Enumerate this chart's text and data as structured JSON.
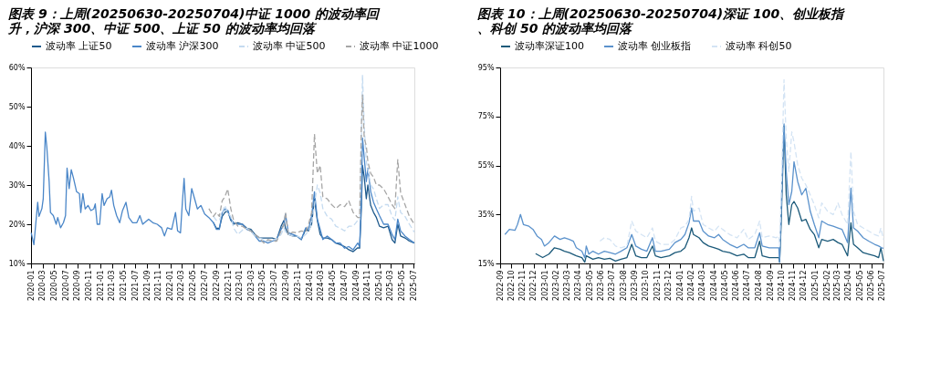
{
  "chart_data": [
    {
      "type": "line",
      "title": "图表 9：上周(20250630-20250704)中证 1000 的波动率回升，沪深 300、中证 500、上证 50 的波动率均回落",
      "legend": "top",
      "xlim": [
        "2020-01-01",
        "2025-07-04"
      ],
      "xticks": [
        "2020-01",
        "2020-03",
        "2020-05",
        "2020-07",
        "2020-09",
        "2020-11",
        "2021-01",
        "2021-03",
        "2021-05",
        "2021-07",
        "2021-09",
        "2021-11",
        "2022-01",
        "2022-03",
        "2022-05",
        "2022-07",
        "2022-09",
        "2022-11",
        "2023-01",
        "2023-03",
        "2023-05",
        "2023-07",
        "2023-09",
        "2023-11",
        "2024-01",
        "2024-03",
        "2024-05",
        "2024-07",
        "2024-09",
        "2024-11",
        "2025-01",
        "2025-03",
        "2025-05",
        "2025-07"
      ],
      "ylim": [
        10,
        60
      ],
      "yticks": [
        {
          "value": 10,
          "label": "10%"
        },
        {
          "value": 20,
          "label": "20%"
        },
        {
          "value": 30,
          "label": "30%"
        },
        {
          "value": 40,
          "label": "40%"
        },
        {
          "value": 50,
          "label": "50%"
        },
        {
          "value": 60,
          "label": "60%"
        }
      ],
      "series": [
        {
          "name": "波动率 上证50",
          "color": "#1f5a8c",
          "line_style": "solid",
          "x": [
            "2022-08-15",
            "2022-08-30",
            "2022-09-15",
            "2022-09-30",
            "2022-10-14",
            "2022-10-29",
            "2022-11-14",
            "2022-11-29",
            "2022-12-21",
            "2023-01-14",
            "2023-02-06",
            "2023-02-28",
            "2023-03-21",
            "2023-04-13",
            "2023-05-06",
            "2023-05-28",
            "2023-06-20",
            "2023-07-13",
            "2023-08-05",
            "2023-08-20",
            "2023-08-28",
            "2023-09-12",
            "2023-10-05",
            "2023-10-27",
            "2023-11-19",
            "2023-12-12",
            "2023-12-27",
            "2024-01-12",
            "2024-01-27",
            "2024-02-11",
            "2024-02-26",
            "2024-03-11",
            "2024-04-03",
            "2024-04-26",
            "2024-05-18",
            "2024-06-10",
            "2024-07-03",
            "2024-07-25",
            "2024-08-17",
            "2024-09-10",
            "2024-09-20",
            "2024-09-29",
            "2024-10-05",
            "2024-10-14",
            "2024-10-25",
            "2024-11-02",
            "2024-11-17",
            "2024-12-02",
            "2024-12-17",
            "2025-01-02",
            "2025-01-24",
            "2025-02-16",
            "2025-03-09",
            "2025-03-24",
            "2025-04-08",
            "2025-04-23",
            "2025-05-16",
            "2025-06-08",
            "2025-07-04"
          ],
          "values": [
            20.4,
            19,
            19,
            22,
            23,
            23.5,
            21,
            20,
            20.4,
            20,
            19,
            18.7,
            17.4,
            16.5,
            16.5,
            16.5,
            16.5,
            16.1,
            19.5,
            21,
            19,
            17.4,
            17,
            17,
            16.1,
            18.7,
            18.3,
            20,
            26.5,
            21,
            17.4,
            16.5,
            16.5,
            16.1,
            15.2,
            14.8,
            14.3,
            13.5,
            13,
            14,
            13.9,
            24,
            35,
            32,
            26.5,
            30,
            24.8,
            23,
            21.7,
            19.5,
            19.1,
            19.5,
            16.1,
            15.2,
            20,
            17,
            16.5,
            15.7,
            15.2
          ]
        },
        {
          "name": "波动率 沪深300",
          "color": "#4a86c8",
          "line_style": "solid",
          "x": [
            "2020-01-02",
            "2020-01-16",
            "2020-02-05",
            "2020-02-12",
            "2020-02-27",
            "2020-03-05",
            "2020-03-16",
            "2020-03-24",
            "2020-04-05",
            "2020-04-12",
            "2020-04-27",
            "2020-05-12",
            "2020-05-20",
            "2020-06-04",
            "2020-06-19",
            "2020-06-30",
            "2020-07-08",
            "2020-07-19",
            "2020-07-30",
            "2020-08-11",
            "2020-08-27",
            "2020-09-11",
            "2020-09-18",
            "2020-09-29",
            "2020-10-11",
            "2020-10-26",
            "2020-11-10",
            "2020-11-25",
            "2020-12-03",
            "2020-12-13",
            "2020-12-26",
            "2021-01-08",
            "2021-01-18",
            "2021-02-03",
            "2021-02-17",
            "2021-02-26",
            "2021-03-10",
            "2021-03-25",
            "2021-04-10",
            "2021-04-25",
            "2021-05-13",
            "2021-05-28",
            "2021-06-17",
            "2021-07-09",
            "2021-07-25",
            "2021-08-09",
            "2021-09-09",
            "2021-10-01",
            "2021-10-24",
            "2021-11-16",
            "2021-12-01",
            "2021-12-16",
            "2022-01-08",
            "2022-01-28",
            "2022-02-08",
            "2022-02-23",
            "2022-03-05",
            "2022-03-14",
            "2022-03-23",
            "2022-04-08",
            "2022-04-23",
            "2022-05-08",
            "2022-05-23",
            "2022-06-10",
            "2022-06-30",
            "2022-07-22",
            "2022-08-15",
            "2022-08-30",
            "2022-09-15",
            "2022-09-30",
            "2022-10-14",
            "2022-10-29",
            "2022-11-14",
            "2022-11-29",
            "2022-12-21",
            "2023-01-14",
            "2023-02-06",
            "2023-02-28",
            "2023-03-21",
            "2023-04-13",
            "2023-05-06",
            "2023-05-28",
            "2023-06-20",
            "2023-07-13",
            "2023-08-05",
            "2023-08-20",
            "2023-08-28",
            "2023-09-12",
            "2023-10-05",
            "2023-10-27",
            "2023-11-19",
            "2023-12-12",
            "2023-12-27",
            "2024-01-12",
            "2024-01-27",
            "2024-02-11",
            "2024-02-26",
            "2024-03-11",
            "2024-04-03",
            "2024-04-26",
            "2024-05-18",
            "2024-06-10",
            "2024-07-03",
            "2024-07-25",
            "2024-08-17",
            "2024-09-10",
            "2024-09-20",
            "2024-09-29",
            "2024-10-05",
            "2024-10-14",
            "2024-10-25",
            "2024-11-02",
            "2024-11-17",
            "2024-12-02",
            "2024-12-17",
            "2025-01-02",
            "2025-01-24",
            "2025-02-16",
            "2025-03-09",
            "2025-03-24",
            "2025-04-08",
            "2025-04-23",
            "2025-05-16",
            "2025-06-08",
            "2025-07-04"
          ],
          "values": [
            17.8,
            14.8,
            25.6,
            22,
            24,
            26.5,
            43.5,
            39.6,
            30.9,
            23,
            22.2,
            20,
            21.7,
            19.1,
            20.4,
            22.2,
            34.3,
            29.1,
            33.9,
            31.7,
            28.3,
            27.8,
            23,
            27.8,
            23.9,
            24.8,
            23.5,
            23.9,
            25.2,
            20,
            20,
            27.8,
            24.8,
            26.5,
            27,
            28.7,
            24.8,
            22.2,
            20.4,
            23.5,
            25.6,
            21.7,
            20.4,
            20.4,
            22.2,
            20,
            21.3,
            20.4,
            20,
            19.1,
            17,
            19.1,
            18.7,
            23,
            18.3,
            17.8,
            25.6,
            31.7,
            23.9,
            22.2,
            29.1,
            26.5,
            23.9,
            24.8,
            22.6,
            21.7,
            20.4,
            18.7,
            18.7,
            23,
            23.9,
            23.5,
            21.3,
            20.4,
            20,
            20,
            18.7,
            18.3,
            17,
            15.7,
            15.7,
            15.2,
            15.7,
            16.1,
            18.7,
            20,
            22.6,
            17.8,
            17.4,
            17,
            16.1,
            19.1,
            18.7,
            22.2,
            28.3,
            21.3,
            18.7,
            16.1,
            17,
            16.1,
            15.2,
            15.2,
            13.9,
            14.3,
            13.5,
            15.2,
            14.3,
            26.5,
            42,
            37,
            30.9,
            34.3,
            28.3,
            25.6,
            23.9,
            22.2,
            20,
            20,
            17.4,
            16.1,
            21.3,
            18.3,
            17,
            16.1,
            15.2
          ]
        },
        {
          "name": "波动率 中证500",
          "color": "#c5dbf0",
          "line_style": "dashed",
          "x": [
            "2022-08-15",
            "2022-08-30",
            "2022-09-15",
            "2022-09-30",
            "2022-10-14",
            "2022-10-29",
            "2022-11-14",
            "2022-11-29",
            "2022-12-21",
            "2023-01-14",
            "2023-02-06",
            "2023-02-28",
            "2023-03-21",
            "2023-04-13",
            "2023-05-06",
            "2023-05-28",
            "2023-06-20",
            "2023-07-13",
            "2023-08-05",
            "2023-08-20",
            "2023-08-28",
            "2023-09-12",
            "2023-10-05",
            "2023-10-27",
            "2023-11-19",
            "2023-12-12",
            "2023-12-27",
            "2024-01-12",
            "2024-01-27",
            "2024-02-11",
            "2024-02-26",
            "2024-03-11",
            "2024-04-03",
            "2024-04-26",
            "2024-05-18",
            "2024-06-10",
            "2024-07-03",
            "2024-07-25",
            "2024-08-17",
            "2024-09-10",
            "2024-09-20",
            "2024-09-29",
            "2024-10-05",
            "2024-10-14",
            "2024-10-25",
            "2024-11-02",
            "2024-11-17",
            "2024-12-02",
            "2024-12-17",
            "2025-01-02",
            "2025-01-24",
            "2025-02-16",
            "2025-03-09",
            "2025-03-24",
            "2025-04-08",
            "2025-04-23",
            "2025-05-16",
            "2025-06-08",
            "2025-07-04"
          ],
          "values": [
            22,
            21,
            21,
            23,
            24.8,
            23,
            22,
            19,
            17.4,
            18.5,
            19,
            18.3,
            17,
            16.5,
            16.1,
            15.7,
            16.1,
            16.1,
            17.4,
            19,
            18,
            17.4,
            17,
            17,
            16.5,
            17.4,
            18.3,
            20,
            25,
            30,
            28,
            24,
            22,
            21.3,
            19.5,
            19,
            18.3,
            19.5,
            19.5,
            21,
            21,
            40,
            58,
            45,
            36,
            34,
            30,
            29,
            26.5,
            24,
            25,
            25,
            22,
            21,
            27,
            23,
            22,
            20,
            18
          ]
        },
        {
          "name": "波动率 中证1000",
          "color": "#a6a6a6",
          "line_style": "dashed",
          "x": [
            "2022-07-22",
            "2022-08-15",
            "2022-08-30",
            "2022-09-15",
            "2022-09-30",
            "2022-10-14",
            "2022-10-29",
            "2022-11-14",
            "2022-11-29",
            "2022-12-21",
            "2023-01-14",
            "2023-02-06",
            "2023-02-28",
            "2023-03-21",
            "2023-04-13",
            "2023-05-06",
            "2023-05-28",
            "2023-06-20",
            "2023-07-13",
            "2023-08-05",
            "2023-08-20",
            "2023-08-28",
            "2023-09-12",
            "2023-10-05",
            "2023-10-27",
            "2023-11-19",
            "2023-12-12",
            "2023-12-27",
            "2024-01-12",
            "2024-01-27",
            "2024-02-11",
            "2024-02-26",
            "2024-03-11",
            "2024-04-03",
            "2024-04-26",
            "2024-05-18",
            "2024-06-10",
            "2024-07-03",
            "2024-07-25",
            "2024-08-17",
            "2024-09-10",
            "2024-09-20",
            "2024-09-29",
            "2024-10-05",
            "2024-10-14",
            "2024-10-25",
            "2024-11-02",
            "2024-11-17",
            "2024-12-02",
            "2024-12-17",
            "2025-01-02",
            "2025-01-24",
            "2025-02-16",
            "2025-03-09",
            "2025-03-24",
            "2025-04-08",
            "2025-04-23",
            "2025-05-16",
            "2025-06-08",
            "2025-07-04"
          ],
          "values": [
            24,
            22,
            23,
            22,
            26,
            27,
            29,
            24,
            21,
            19.5,
            19.5,
            18.7,
            18.3,
            17.4,
            16.5,
            15.2,
            16.1,
            15.7,
            15.7,
            18.3,
            20,
            23,
            17.4,
            18,
            17.8,
            18.3,
            18,
            20,
            23,
            43,
            33,
            35,
            27,
            26.5,
            25,
            24,
            25,
            24.5,
            26,
            23,
            21.7,
            21.7,
            45,
            53,
            42,
            40,
            36,
            33,
            32,
            30,
            30,
            29,
            27,
            25,
            24,
            36.5,
            28,
            25,
            22,
            20
          ]
        }
      ]
    },
    {
      "type": "line",
      "title": "图表 10：上周(20250630-20250704)深证 100、创业板指、科创 50 的波动率均回落",
      "legend": "top",
      "xlim": [
        "2022-09-01",
        "2025-07-04"
      ],
      "xticks": [
        "2022-09",
        "2022-10",
        "2022-11",
        "2022-12",
        "2023-01",
        "2023-02",
        "2023-03",
        "2023-04",
        "2023-05",
        "2023-06",
        "2023-07",
        "2023-08",
        "2023-09",
        "2023-10",
        "2023-11",
        "2023-12",
        "2024-01",
        "2024-02",
        "2024-03",
        "2024-04",
        "2024-05",
        "2024-06",
        "2024-07",
        "2024-08",
        "2024-09",
        "2024-10",
        "2024-11",
        "2024-12",
        "2025-01",
        "2025-02",
        "2025-03",
        "2025-04",
        "2025-05",
        "2025-06",
        "2025-07"
      ],
      "ylim": [
        15,
        95
      ],
      "yticks": [
        {
          "value": 15,
          "label": "15%"
        },
        {
          "value": 35,
          "label": "35%"
        },
        {
          "value": 55,
          "label": "55%"
        },
        {
          "value": 75,
          "label": "75%"
        },
        {
          "value": 95,
          "label": "95%"
        }
      ],
      "series": [
        {
          "name": "波动率深证100",
          "color": "#1c5a7a",
          "line_style": "solid",
          "x": [
            "2022-12-06",
            "2022-12-25",
            "2023-01-11",
            "2023-01-26",
            "2023-02-10",
            "2023-02-22",
            "2023-03-07",
            "2023-03-26",
            "2023-04-10",
            "2023-04-18",
            "2023-04-22",
            "2023-05-10",
            "2023-05-25",
            "2023-06-10",
            "2023-06-25",
            "2023-07-10",
            "2023-07-25",
            "2023-08-10",
            "2023-08-23",
            "2023-09-03",
            "2023-09-18",
            "2023-10-03",
            "2023-10-18",
            "2023-10-26",
            "2023-11-10",
            "2023-12-03",
            "2023-12-18",
            "2024-01-03",
            "2024-01-14",
            "2024-01-25",
            "2024-02-01",
            "2024-02-06",
            "2024-02-21",
            "2024-03-03",
            "2024-03-18",
            "2024-04-03",
            "2024-04-14",
            "2024-04-25",
            "2024-05-14",
            "2024-06-03",
            "2024-06-21",
            "2024-07-03",
            "2024-07-21",
            "2024-08-03",
            "2024-08-10",
            "2024-08-29",
            "2024-09-17",
            "2024-09-24",
            "2024-09-26",
            "2024-09-30",
            "2024-10-08",
            "2024-10-14",
            "2024-10-21",
            "2024-10-29",
            "2024-11-04",
            "2024-11-14",
            "2024-11-25",
            "2024-12-06",
            "2024-12-18",
            "2024-12-29",
            "2025-01-10",
            "2025-01-18",
            "2025-02-03",
            "2025-02-18",
            "2025-03-03",
            "2025-03-14",
            "2025-03-29",
            "2025-04-07",
            "2025-04-14",
            "2025-04-25",
            "2025-05-10",
            "2025-05-25",
            "2025-06-10",
            "2025-06-21",
            "2025-06-27",
            "2025-07-04"
          ],
          "values": [
            19,
            17.4,
            18.8,
            21.4,
            20.8,
            20,
            19.4,
            18.1,
            17.4,
            15.5,
            18.1,
            16.7,
            17.4,
            16.7,
            17.1,
            16,
            16.7,
            17.4,
            22.8,
            18.1,
            17.4,
            17.4,
            22.1,
            18.1,
            17.4,
            18.1,
            19.4,
            20,
            21.4,
            25.5,
            29.5,
            26.8,
            25.5,
            23.5,
            22.1,
            21.4,
            20.8,
            20,
            19.4,
            18.1,
            18.8,
            17.4,
            17.4,
            24.1,
            18.1,
            17.4,
            17.4,
            17.4,
            15.5,
            30,
            71,
            43,
            30.9,
            39,
            40.3,
            37.6,
            32.3,
            33,
            28.9,
            26.8,
            21.4,
            24.8,
            24.1,
            24.8,
            23.5,
            22.8,
            18.1,
            31.6,
            22.8,
            21.4,
            19.4,
            18.8,
            18.1,
            17.4,
            21.4,
            16
          ]
        },
        {
          "name": "波动率 创业板指",
          "color": "#5b92cc",
          "line_style": "solid",
          "x": [
            "2022-09-14",
            "2022-09-26",
            "2022-10-11",
            "2022-10-18",
            "2022-10-26",
            "2022-11-03",
            "2022-11-18",
            "2022-11-29",
            "2022-12-10",
            "2022-12-22",
            "2022-12-30",
            "2023-01-11",
            "2023-01-26",
            "2023-02-10",
            "2023-02-22",
            "2023-03-07",
            "2023-03-18",
            "2023-03-26",
            "2023-04-10",
            "2023-04-18",
            "2023-04-22",
            "2023-04-29",
            "2023-05-10",
            "2023-05-25",
            "2023-06-10",
            "2023-06-25",
            "2023-07-10",
            "2023-07-25",
            "2023-08-10",
            "2023-08-23",
            "2023-09-03",
            "2023-09-18",
            "2023-10-03",
            "2023-10-18",
            "2023-10-26",
            "2023-11-10",
            "2023-12-03",
            "2023-12-18",
            "2024-01-03",
            "2024-01-14",
            "2024-01-25",
            "2024-02-01",
            "2024-02-06",
            "2024-02-21",
            "2024-03-03",
            "2024-03-18",
            "2024-04-03",
            "2024-04-14",
            "2024-04-25",
            "2024-05-14",
            "2024-06-03",
            "2024-06-21",
            "2024-07-03",
            "2024-07-21",
            "2024-08-03",
            "2024-08-10",
            "2024-08-29",
            "2024-09-17",
            "2024-09-24",
            "2024-09-26",
            "2024-09-30",
            "2024-10-08",
            "2024-10-14",
            "2024-10-21",
            "2024-10-29",
            "2024-11-04",
            "2024-11-14",
            "2024-11-25",
            "2024-12-06",
            "2024-12-18",
            "2024-12-29",
            "2025-01-10",
            "2025-01-18",
            "2025-02-03",
            "2025-02-18",
            "2025-03-03",
            "2025-03-14",
            "2025-03-29",
            "2025-04-07",
            "2025-04-14",
            "2025-04-25",
            "2025-05-10",
            "2025-05-25",
            "2025-06-10",
            "2025-06-21",
            "2025-06-29",
            "2025-07-04"
          ],
          "values": [
            26.8,
            28.9,
            28.5,
            30.9,
            35,
            30.9,
            30.2,
            28.9,
            26.2,
            24.8,
            22.1,
            23.5,
            26.2,
            24.8,
            25.5,
            24.8,
            24.1,
            21.4,
            20,
            17.3,
            22.1,
            18.8,
            20,
            18.8,
            20,
            19.4,
            18.8,
            20,
            21.4,
            26.8,
            22.1,
            20.8,
            20,
            25.5,
            20,
            20,
            20.8,
            23.5,
            24.8,
            26.8,
            31.6,
            37.6,
            32.3,
            32.3,
            28.2,
            26.2,
            25.5,
            26.8,
            24.8,
            22.8,
            21.4,
            22.8,
            21.4,
            21.4,
            27.5,
            22.1,
            21.4,
            21.4,
            21.4,
            15.5,
            35,
            72,
            52.5,
            39,
            44.4,
            56.5,
            48.4,
            43,
            45.7,
            36.3,
            30.9,
            25.5,
            32.3,
            30.9,
            30.2,
            29.5,
            28.9,
            23.5,
            45.7,
            29.5,
            28.2,
            25.5,
            24.1,
            22.8,
            22.1,
            21.4,
            21.2
          ]
        },
        {
          "name": "波动率 科创50",
          "color": "#d4e4f4",
          "line_style": "dashed",
          "x": [
            "2023-05-29",
            "2023-06-10",
            "2023-06-25",
            "2023-07-10",
            "2023-07-25",
            "2023-08-10",
            "2023-08-23",
            "2023-09-03",
            "2023-09-18",
            "2023-10-03",
            "2023-10-18",
            "2023-10-26",
            "2023-11-10",
            "2023-12-03",
            "2023-12-18",
            "2024-01-03",
            "2024-01-14",
            "2024-01-25",
            "2024-02-01",
            "2024-02-06",
            "2024-02-21",
            "2024-03-03",
            "2024-03-18",
            "2024-04-03",
            "2024-04-14",
            "2024-04-25",
            "2024-05-14",
            "2024-06-03",
            "2024-06-21",
            "2024-07-03",
            "2024-07-21",
            "2024-08-03",
            "2024-08-10",
            "2024-08-29",
            "2024-09-17",
            "2024-09-24",
            "2024-09-26",
            "2024-09-30",
            "2024-10-08",
            "2024-10-14",
            "2024-10-21",
            "2024-10-29",
            "2024-11-04",
            "2024-11-14",
            "2024-11-25",
            "2024-12-06",
            "2024-12-18",
            "2024-12-29",
            "2025-01-10",
            "2025-01-18",
            "2025-02-03",
            "2025-02-18",
            "2025-03-03",
            "2025-03-14",
            "2025-03-29",
            "2025-04-07",
            "2025-04-14",
            "2025-04-25",
            "2025-05-10",
            "2025-05-25",
            "2025-06-10",
            "2025-06-21",
            "2025-06-27",
            "2025-07-04"
          ],
          "values": [
            24.1,
            25.5,
            24.8,
            22.1,
            21.4,
            22.1,
            32.3,
            28.2,
            26.8,
            25.5,
            29.5,
            24.1,
            22.8,
            22.8,
            24.8,
            29.5,
            30.2,
            32.9,
            42.4,
            36.3,
            37.6,
            30.9,
            29.5,
            28.2,
            30.2,
            28.9,
            26.8,
            25.5,
            28.9,
            24.8,
            26.8,
            32.3,
            25.5,
            26.2,
            25.5,
            26.2,
            22,
            40,
            90,
            66,
            52.5,
            68.7,
            64.6,
            55.2,
            49.8,
            47.1,
            43,
            39,
            33.6,
            39.7,
            36.3,
            34.9,
            39.7,
            34.9,
            30.9,
            60.6,
            36.3,
            30.9,
            29.5,
            28.2,
            26.8,
            26.2,
            29.5,
            24.8
          ]
        }
      ]
    }
  ]
}
